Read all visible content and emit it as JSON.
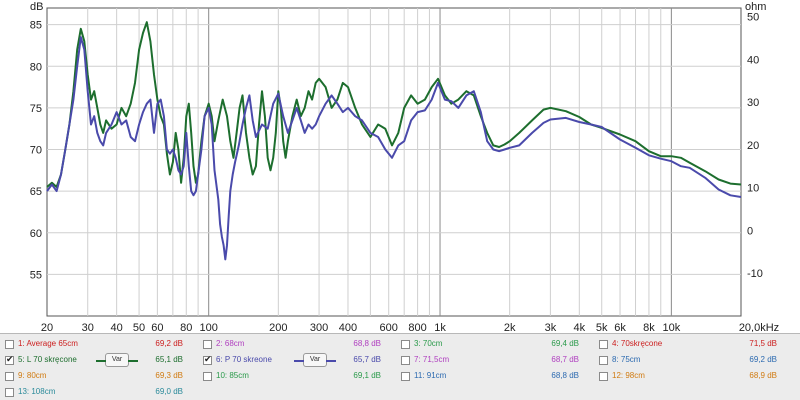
{
  "chart_data": {
    "type": "line",
    "x_scale": "log",
    "xlim": [
      20,
      20000
    ],
    "ylim": [
      50,
      87
    ],
    "y2lim": [
      -20,
      52
    ],
    "ylabel": "dB",
    "y2label": "ohm",
    "yticks": [
      55,
      60,
      65,
      70,
      75,
      80,
      85
    ],
    "y2ticks": [
      -10,
      0,
      10,
      20,
      30,
      40,
      50
    ],
    "xticks": [
      {
        "v": 20,
        "label": "20"
      },
      {
        "v": 30,
        "label": "30"
      },
      {
        "v": 40,
        "label": "40"
      },
      {
        "v": 50,
        "label": "50"
      },
      {
        "v": 60,
        "label": "60"
      },
      {
        "v": 80,
        "label": "80"
      },
      {
        "v": 100,
        "label": "100"
      },
      {
        "v": 200,
        "label": "200"
      },
      {
        "v": 300,
        "label": "300"
      },
      {
        "v": 400,
        "label": "400"
      },
      {
        "v": 600,
        "label": "600"
      },
      {
        "v": 800,
        "label": "800"
      },
      {
        "v": 1000,
        "label": "1k"
      },
      {
        "v": 2000,
        "label": "2k"
      },
      {
        "v": 3000,
        "label": "3k"
      },
      {
        "v": 4000,
        "label": "4k"
      },
      {
        "v": 5000,
        "label": "5k"
      },
      {
        "v": 6000,
        "label": "6k"
      },
      {
        "v": 8000,
        "label": "8k"
      },
      {
        "v": 10000,
        "label": "10k"
      },
      {
        "v": 20000,
        "label": "20,0kHz"
      }
    ],
    "grid": true,
    "series": [
      {
        "name": "5: L 70 skręcone",
        "color": "#1d6e2e",
        "points": [
          [
            20,
            65.5
          ],
          [
            21,
            66
          ],
          [
            22,
            65.5
          ],
          [
            23,
            67
          ],
          [
            24,
            70
          ],
          [
            25,
            73
          ],
          [
            26,
            77
          ],
          [
            27,
            82
          ],
          [
            28,
            84.5
          ],
          [
            29,
            83
          ],
          [
            30,
            79
          ],
          [
            31,
            76
          ],
          [
            32,
            77
          ],
          [
            33,
            75
          ],
          [
            34,
            73
          ],
          [
            35,
            72
          ],
          [
            36,
            73.5
          ],
          [
            38,
            72.5
          ],
          [
            40,
            73
          ],
          [
            42,
            75
          ],
          [
            44,
            74
          ],
          [
            46,
            75.5
          ],
          [
            48,
            78
          ],
          [
            50,
            82
          ],
          [
            52,
            84
          ],
          [
            54,
            85.3
          ],
          [
            56,
            83
          ],
          [
            58,
            79
          ],
          [
            60,
            76
          ],
          [
            62,
            74
          ],
          [
            64,
            73
          ],
          [
            66,
            69.5
          ],
          [
            68,
            67
          ],
          [
            70,
            68.5
          ],
          [
            72,
            72
          ],
          [
            74,
            70
          ],
          [
            76,
            66
          ],
          [
            78,
            69
          ],
          [
            80,
            74
          ],
          [
            82,
            75.5
          ],
          [
            84,
            72
          ],
          [
            86,
            68
          ],
          [
            88,
            66
          ],
          [
            90,
            67
          ],
          [
            93,
            71
          ],
          [
            96,
            74
          ],
          [
            100,
            75.5
          ],
          [
            103,
            74
          ],
          [
            106,
            71
          ],
          [
            110,
            73.5
          ],
          [
            115,
            76
          ],
          [
            120,
            74
          ],
          [
            124,
            71
          ],
          [
            128,
            69
          ],
          [
            132,
            72
          ],
          [
            136,
            75
          ],
          [
            140,
            76.5
          ],
          [
            145,
            72
          ],
          [
            150,
            69
          ],
          [
            155,
            67
          ],
          [
            160,
            68
          ],
          [
            165,
            73
          ],
          [
            170,
            77
          ],
          [
            175,
            74
          ],
          [
            180,
            69
          ],
          [
            185,
            67.5
          ],
          [
            190,
            69
          ],
          [
            195,
            72
          ],
          [
            200,
            77
          ],
          [
            205,
            75
          ],
          [
            210,
            71
          ],
          [
            215,
            69
          ],
          [
            220,
            71
          ],
          [
            230,
            74
          ],
          [
            240,
            76
          ],
          [
            250,
            74
          ],
          [
            260,
            75
          ],
          [
            270,
            77
          ],
          [
            280,
            76
          ],
          [
            290,
            78
          ],
          [
            300,
            78.5
          ],
          [
            320,
            77.5
          ],
          [
            340,
            75
          ],
          [
            360,
            76
          ],
          [
            380,
            78
          ],
          [
            400,
            77.5
          ],
          [
            430,
            75
          ],
          [
            460,
            73
          ],
          [
            500,
            71.5
          ],
          [
            540,
            73
          ],
          [
            580,
            72.5
          ],
          [
            620,
            70.5
          ],
          [
            660,
            72
          ],
          [
            700,
            75
          ],
          [
            750,
            76.5
          ],
          [
            800,
            75.5
          ],
          [
            860,
            76
          ],
          [
            920,
            77.5
          ],
          [
            980,
            78.5
          ],
          [
            1050,
            76.5
          ],
          [
            1120,
            75.5
          ],
          [
            1200,
            76
          ],
          [
            1300,
            77
          ],
          [
            1400,
            76.5
          ],
          [
            1500,
            74
          ],
          [
            1600,
            72
          ],
          [
            1700,
            70.5
          ],
          [
            1800,
            70.3
          ],
          [
            1900,
            70.6
          ],
          [
            2000,
            71
          ],
          [
            2200,
            72
          ],
          [
            2500,
            73.5
          ],
          [
            2800,
            74.8
          ],
          [
            3000,
            75
          ],
          [
            3500,
            74.6
          ],
          [
            4000,
            73.9
          ],
          [
            4500,
            73
          ],
          [
            5000,
            72.6
          ],
          [
            6000,
            71.8
          ],
          [
            7000,
            71
          ],
          [
            8000,
            69.8
          ],
          [
            9000,
            69.2
          ],
          [
            10000,
            69.2
          ],
          [
            11000,
            69
          ],
          [
            12000,
            68.4
          ],
          [
            14000,
            67.4
          ],
          [
            16000,
            66.4
          ],
          [
            18000,
            65.9
          ],
          [
            20000,
            65.8
          ]
        ]
      },
      {
        "name": "6: P 70 skręone",
        "color": "#4a4aab",
        "points": [
          [
            20,
            65
          ],
          [
            21,
            65.8
          ],
          [
            22,
            65
          ],
          [
            23,
            67
          ],
          [
            24,
            70
          ],
          [
            25,
            73
          ],
          [
            26,
            76
          ],
          [
            27,
            80
          ],
          [
            28,
            83.5
          ],
          [
            29,
            82
          ],
          [
            30,
            77
          ],
          [
            31,
            73
          ],
          [
            32,
            74
          ],
          [
            33,
            72
          ],
          [
            34,
            71
          ],
          [
            35,
            70.5
          ],
          [
            36,
            72
          ],
          [
            38,
            73
          ],
          [
            40,
            74.5
          ],
          [
            42,
            73
          ],
          [
            44,
            73.5
          ],
          [
            46,
            71.5
          ],
          [
            48,
            71
          ],
          [
            50,
            73
          ],
          [
            52,
            74.5
          ],
          [
            54,
            75.5
          ],
          [
            56,
            76
          ],
          [
            58,
            72
          ],
          [
            60,
            75.5
          ],
          [
            62,
            76
          ],
          [
            64,
            74
          ],
          [
            66,
            70
          ],
          [
            68,
            69.5
          ],
          [
            70,
            70
          ],
          [
            72,
            69
          ],
          [
            74,
            67.5
          ],
          [
            76,
            67
          ],
          [
            78,
            68
          ],
          [
            80,
            72
          ],
          [
            82,
            68
          ],
          [
            84,
            65
          ],
          [
            86,
            64.5
          ],
          [
            88,
            65
          ],
          [
            90,
            67
          ],
          [
            93,
            70
          ],
          [
            96,
            74
          ],
          [
            100,
            75
          ],
          [
            103,
            73
          ],
          [
            106,
            67.5
          ],
          [
            110,
            64
          ],
          [
            112,
            61
          ],
          [
            114,
            59.5
          ],
          [
            116,
            58.5
          ],
          [
            118,
            56.8
          ],
          [
            120,
            58.5
          ],
          [
            122,
            62
          ],
          [
            124,
            65
          ],
          [
            127,
            67
          ],
          [
            130,
            68.5
          ],
          [
            135,
            70.5
          ],
          [
            140,
            73
          ],
          [
            145,
            75
          ],
          [
            150,
            76.5
          ],
          [
            155,
            73.5
          ],
          [
            160,
            71.5
          ],
          [
            170,
            73
          ],
          [
            180,
            72.5
          ],
          [
            190,
            75.5
          ],
          [
            200,
            76.7
          ],
          [
            210,
            74
          ],
          [
            220,
            72
          ],
          [
            230,
            73.5
          ],
          [
            240,
            75
          ],
          [
            250,
            73.5
          ],
          [
            260,
            72
          ],
          [
            270,
            73
          ],
          [
            280,
            72.5
          ],
          [
            290,
            73
          ],
          [
            300,
            74
          ],
          [
            320,
            75.5
          ],
          [
            340,
            76.5
          ],
          [
            360,
            75.5
          ],
          [
            380,
            74.5
          ],
          [
            400,
            75
          ],
          [
            430,
            74
          ],
          [
            460,
            73.5
          ],
          [
            500,
            72
          ],
          [
            540,
            71.5
          ],
          [
            580,
            70
          ],
          [
            620,
            69
          ],
          [
            660,
            70.5
          ],
          [
            700,
            71
          ],
          [
            750,
            73.5
          ],
          [
            800,
            74.5
          ],
          [
            860,
            74.7
          ],
          [
            920,
            76
          ],
          [
            980,
            78
          ],
          [
            1050,
            76
          ],
          [
            1120,
            75.8
          ],
          [
            1200,
            75
          ],
          [
            1300,
            76.5
          ],
          [
            1400,
            77
          ],
          [
            1500,
            74.5
          ],
          [
            1600,
            71
          ],
          [
            1700,
            70
          ],
          [
            1800,
            69.8
          ],
          [
            1900,
            70
          ],
          [
            2000,
            70.2
          ],
          [
            2200,
            70.5
          ],
          [
            2500,
            72
          ],
          [
            2800,
            73.2
          ],
          [
            3000,
            73.6
          ],
          [
            3500,
            73.8
          ],
          [
            4000,
            73.3
          ],
          [
            4500,
            73
          ],
          [
            5000,
            72.7
          ],
          [
            6000,
            71.2
          ],
          [
            7000,
            70.2
          ],
          [
            8000,
            69.3
          ],
          [
            9000,
            68.9
          ],
          [
            10000,
            68.6
          ],
          [
            11000,
            68
          ],
          [
            12000,
            67.8
          ],
          [
            14000,
            66.6
          ],
          [
            16000,
            65.2
          ],
          [
            18000,
            64.5
          ],
          [
            20000,
            64.3
          ]
        ]
      }
    ]
  },
  "legend": {
    "entries": [
      {
        "label": "1: Average 65cm",
        "value": "69,2 dB",
        "checked": false,
        "color": "#cc2020"
      },
      {
        "label": "2: 68cm",
        "value": "68,8 dB",
        "checked": false,
        "color": "#b040c0"
      },
      {
        "label": "3: 70cm",
        "value": "69,4 dB",
        "checked": false,
        "color": "#2a9a4a"
      },
      {
        "label": "4: 70skręcone",
        "value": "71,5 dB",
        "checked": false,
        "color": "#cc2020"
      },
      {
        "label": "5: L 70 skręcone",
        "value": "65,1 dB",
        "checked": true,
        "color": "#1d6e2e",
        "var": "Var"
      },
      {
        "label": "6: P 70 skreone",
        "value": "65,7 dB",
        "checked": true,
        "color": "#4a4aab",
        "var": "Var"
      },
      {
        "label": "7: 71,5cm",
        "value": "68,7 dB",
        "checked": false,
        "color": "#b040c0"
      },
      {
        "label": "8: 75cm",
        "value": "69,2 dB",
        "checked": false,
        "color": "#2c6ab0"
      },
      {
        "label": "9: 80cm",
        "value": "69,3 dB",
        "checked": false,
        "color": "#d07a10"
      },
      {
        "label": "10: 85cm",
        "value": "69,1 dB",
        "checked": false,
        "color": "#2a9a4a"
      },
      {
        "label": "11: 91cm",
        "value": "68,8 dB",
        "checked": false,
        "color": "#2c6ab0"
      },
      {
        "label": "12: 98cm",
        "value": "68,9 dB",
        "checked": false,
        "color": "#d07a10"
      },
      {
        "label": "13: 108cm",
        "value": "69,0 dB",
        "checked": false,
        "color": "#2a8a9a"
      }
    ]
  }
}
